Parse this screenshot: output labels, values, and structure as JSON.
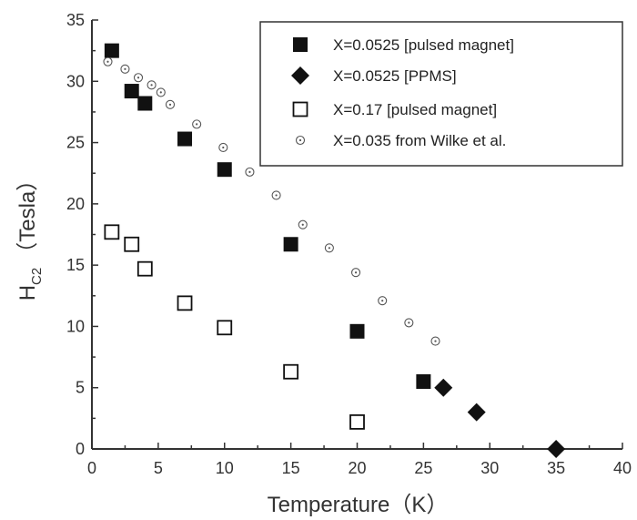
{
  "chart_data": {
    "type": "scatter",
    "xlabel": "Temperature（K）",
    "ylabel_main": "H",
    "ylabel_sub": "C2",
    "ylabel_rest": "（Tesla）",
    "xlim": [
      0,
      40
    ],
    "ylim": [
      0,
      35
    ],
    "xticks": [
      0,
      5,
      10,
      15,
      20,
      25,
      30,
      35,
      40
    ],
    "yticks": [
      0,
      5,
      10,
      15,
      20,
      25,
      30,
      35
    ],
    "grid": false,
    "legend_position": "top-right",
    "series": [
      {
        "name": "X=0.0525 [pulsed magnet]",
        "marker": "filled-square",
        "color": "#111111",
        "points": [
          [
            1.5,
            32.5
          ],
          [
            3.0,
            29.2
          ],
          [
            4.0,
            28.2
          ],
          [
            7.0,
            25.3
          ],
          [
            10.0,
            22.8
          ],
          [
            15.0,
            16.7
          ],
          [
            20.0,
            9.6
          ],
          [
            25.0,
            5.5
          ]
        ]
      },
      {
        "name": "X=0.0525 [PPMS]",
        "marker": "filled-diamond",
        "color": "#111111",
        "points": [
          [
            26.5,
            5.0
          ],
          [
            29.0,
            3.0
          ],
          [
            35.0,
            0.0
          ]
        ]
      },
      {
        "name": "X=0.17 [pulsed magnet]",
        "marker": "open-square",
        "color": "#111111",
        "points": [
          [
            1.5,
            17.7
          ],
          [
            3.0,
            16.7
          ],
          [
            4.0,
            14.7
          ],
          [
            7.0,
            11.9
          ],
          [
            10.0,
            9.9
          ],
          [
            15.0,
            6.3
          ],
          [
            20.0,
            2.2
          ]
        ]
      },
      {
        "name": "X=0.035 from Wilke et al.",
        "marker": "open-circle-dot",
        "color": "#555555",
        "points": [
          [
            1.2,
            31.6
          ],
          [
            2.5,
            31.0
          ],
          [
            3.5,
            30.3
          ],
          [
            4.5,
            29.7
          ],
          [
            5.2,
            29.1
          ],
          [
            5.9,
            28.1
          ],
          [
            7.9,
            26.5
          ],
          [
            9.9,
            24.6
          ],
          [
            11.9,
            22.6
          ],
          [
            13.9,
            20.7
          ],
          [
            15.9,
            18.3
          ],
          [
            17.9,
            16.4
          ],
          [
            19.9,
            14.4
          ],
          [
            21.9,
            12.1
          ],
          [
            23.9,
            10.3
          ],
          [
            25.9,
            8.8
          ]
        ]
      }
    ]
  }
}
